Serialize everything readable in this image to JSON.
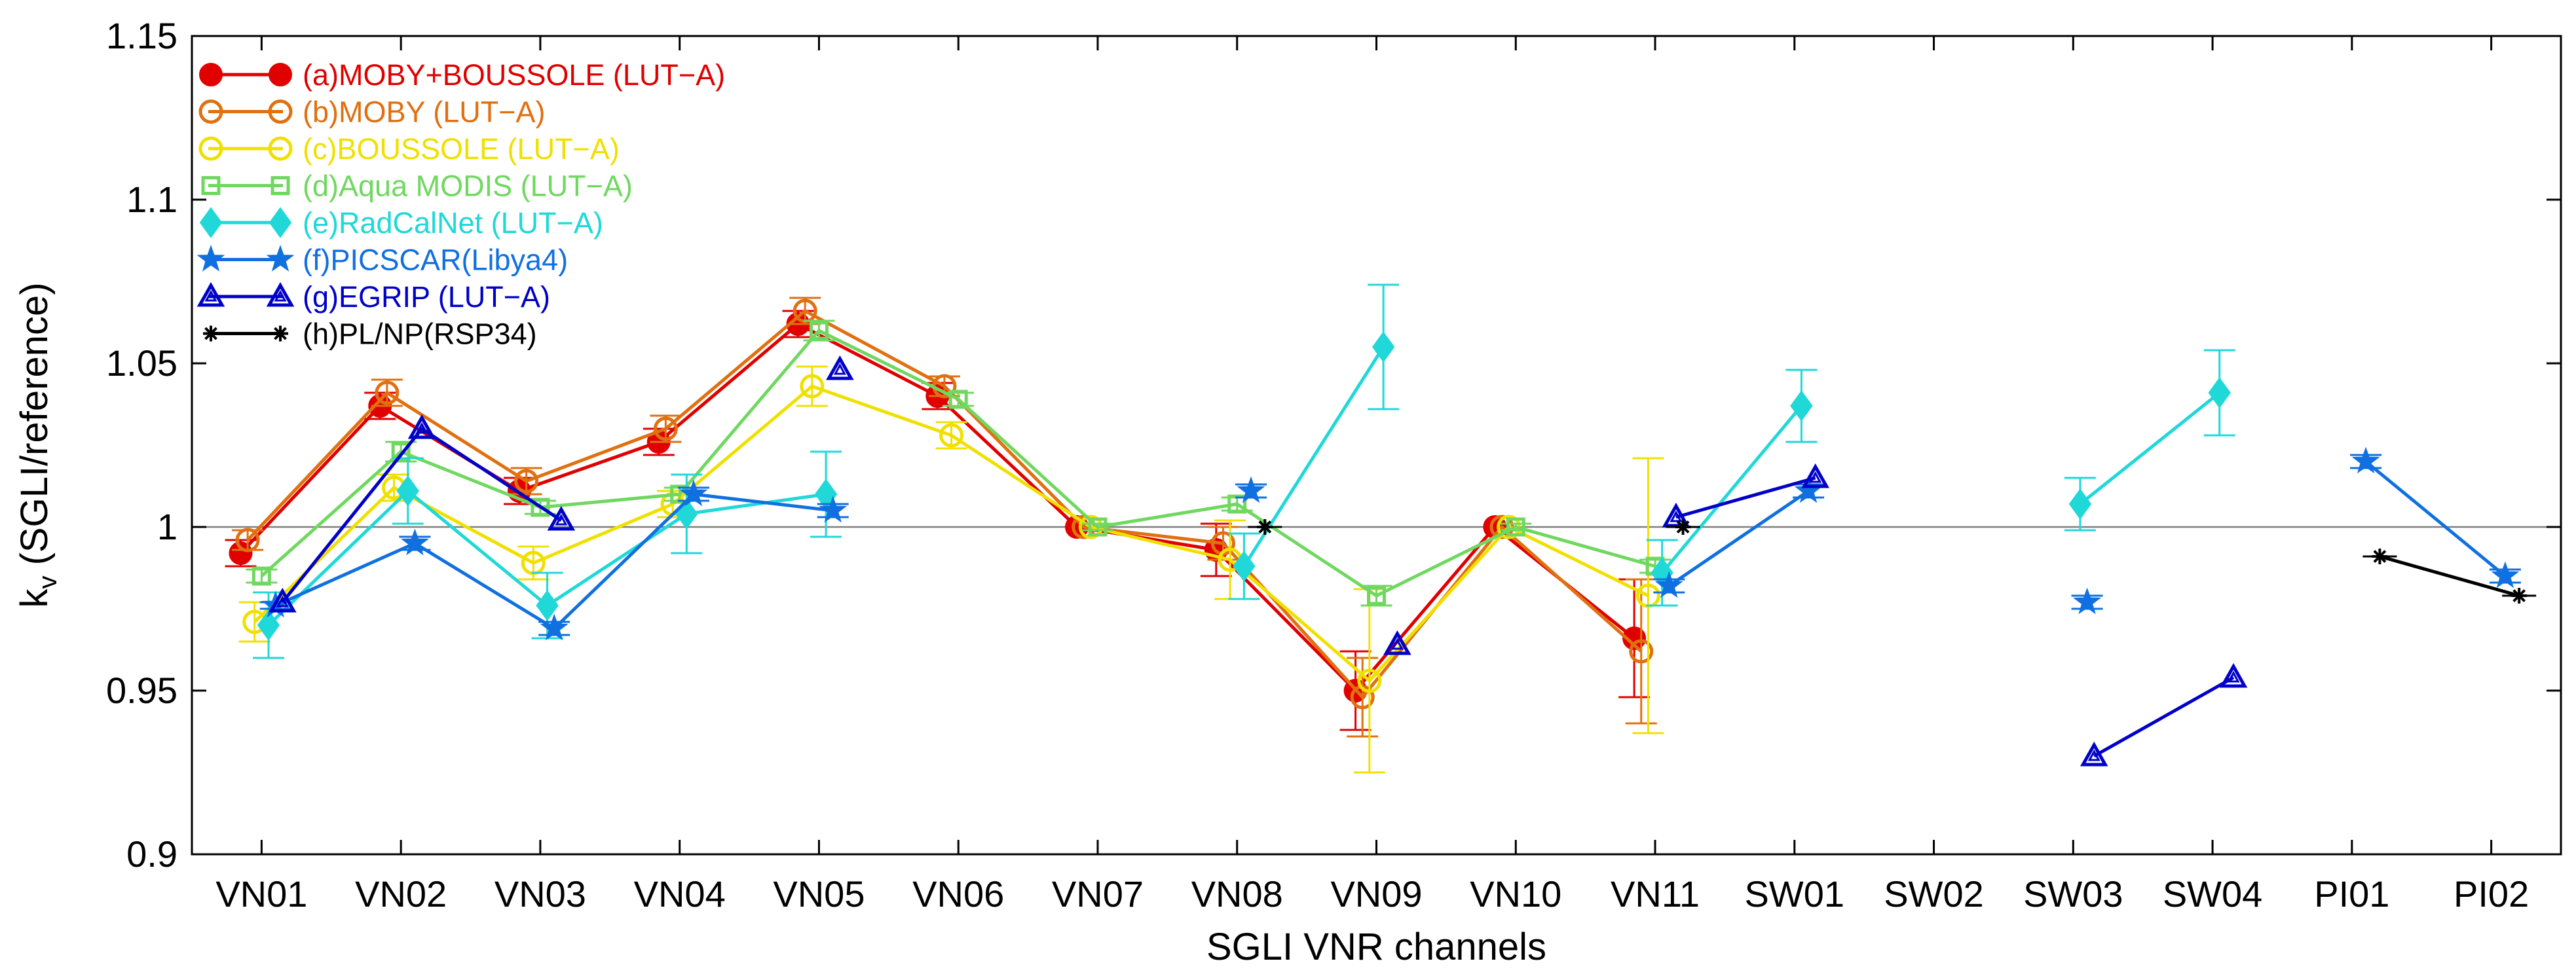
{
  "chart_data": {
    "type": "line",
    "xlabel": "SGLI VNR channels",
    "ylabel_main": "k",
    "ylabel_sub": "v",
    "ylabel_rest": " (SGLI/reference)",
    "ylim": [
      0.9,
      1.15
    ],
    "yticks": [
      "0.9",
      "0.95",
      "1",
      "1.05",
      "1.1",
      "1.15"
    ],
    "ytick_values": [
      0.9,
      0.95,
      1.0,
      1.05,
      1.1,
      1.15
    ],
    "reference_line": 1.0,
    "legend_position": "top-left",
    "categories": [
      "VN01",
      "VN02",
      "VN03",
      "VN04",
      "VN05",
      "VN06",
      "VN07",
      "VN08",
      "VN09",
      "VN10",
      "VN11",
      "SW01",
      "SW02",
      "SW03",
      "SW04",
      "PI01",
      "PI02"
    ],
    "series": [
      {
        "name": "(a)MOBY+BOUSSOLE (LUT−A)",
        "color": "#e00000",
        "marker": "circle-filled",
        "offset": -0.15,
        "values": [
          0.992,
          1.037,
          1.011,
          1.026,
          1.062,
          1.04,
          1.0,
          0.993,
          0.95,
          1.0,
          0.966,
          null,
          null,
          null,
          null,
          null,
          null
        ],
        "errors": [
          0.004,
          0.004,
          0.004,
          0.004,
          0.004,
          0.004,
          0.0,
          0.008,
          0.012,
          0.0,
          0.018,
          null,
          null,
          null,
          null,
          null,
          null
        ]
      },
      {
        "name": "(b)MOBY (LUT−A)",
        "color": "#e07010",
        "marker": "circle-open",
        "offset": -0.1,
        "values": [
          0.996,
          1.041,
          1.014,
          1.03,
          1.066,
          1.043,
          1.0,
          0.995,
          0.948,
          1.0,
          0.962,
          null,
          null,
          null,
          null,
          null,
          null
        ],
        "errors": [
          0.003,
          0.004,
          0.004,
          0.004,
          0.004,
          0.003,
          0.0,
          0.005,
          0.012,
          0.0,
          0.022,
          null,
          null,
          null,
          null,
          null,
          null
        ]
      },
      {
        "name": "(c)BOUSSOLE (LUT−A)",
        "color": "#f0e000",
        "marker": "circle-open",
        "offset": -0.05,
        "values": [
          0.971,
          1.012,
          0.989,
          1.007,
          1.043,
          1.028,
          1.0,
          0.99,
          0.953,
          1.0,
          0.979,
          null,
          null,
          null,
          null,
          null,
          null
        ],
        "errors": [
          0.006,
          0.004,
          0.005,
          0.004,
          0.006,
          0.004,
          0.0,
          0.012,
          0.028,
          0.0,
          0.042,
          null,
          null,
          null,
          null,
          null,
          null
        ]
      },
      {
        "name": "(d)Aqua MODIS (LUT−A)",
        "color": "#70d860",
        "marker": "square-open",
        "offset": 0.0,
        "values": [
          0.985,
          1.023,
          1.006,
          1.01,
          1.06,
          1.039,
          1.0,
          1.007,
          0.979,
          1.0,
          0.988,
          null,
          null,
          null,
          null,
          null,
          null
        ],
        "errors": [
          0.002,
          0.003,
          0.002,
          0.002,
          0.003,
          0.002,
          0.001,
          0.002,
          0.003,
          0.001,
          0.002,
          null,
          null,
          null,
          null,
          null,
          null
        ]
      },
      {
        "name": "(e)RadCalNet (LUT−A)",
        "color": "#20d8d8",
        "marker": "diamond-filled",
        "offset": 0.05,
        "values": [
          0.97,
          1.011,
          0.976,
          1.004,
          1.01,
          null,
          null,
          0.988,
          1.055,
          null,
          0.986,
          1.037,
          null,
          1.007,
          1.041,
          null,
          null
        ],
        "errors": [
          0.01,
          0.01,
          0.01,
          0.012,
          0.013,
          null,
          null,
          0.01,
          0.019,
          null,
          0.01,
          0.011,
          null,
          0.008,
          0.013,
          null,
          null
        ]
      },
      {
        "name": "(f)PICSCAR(Libya4)",
        "color": "#1070e0",
        "marker": "star",
        "offset": 0.1,
        "values": [
          0.976,
          0.995,
          0.969,
          1.01,
          1.005,
          null,
          null,
          1.011,
          null,
          null,
          0.982,
          1.011,
          null,
          0.977,
          null,
          1.02,
          0.985
        ],
        "errors": [
          0.001,
          0.002,
          0.002,
          0.002,
          0.002,
          null,
          null,
          0.002,
          null,
          null,
          0.002,
          0.002,
          null,
          0.002,
          null,
          0.002,
          0.002
        ]
      },
      {
        "name": "(g)EGRIP (LUT−A)",
        "color": "#0000c8",
        "marker": "triangle-open",
        "offset": 0.15,
        "values": [
          0.977,
          1.03,
          1.002,
          null,
          1.048,
          null,
          null,
          null,
          0.964,
          null,
          1.003,
          1.015,
          null,
          0.93,
          0.954,
          null,
          null
        ],
        "errors": [
          0,
          0,
          0,
          null,
          0,
          null,
          null,
          null,
          0,
          null,
          0,
          0,
          null,
          0,
          0,
          null,
          null
        ],
        "segments": [
          [
            0,
            1,
            2
          ],
          [
            4
          ],
          [
            8
          ],
          [
            10,
            11
          ],
          [
            13,
            14
          ]
        ]
      },
      {
        "name": "(h)PL/NP(RSP34)",
        "color": "#000000",
        "marker": "asterisk",
        "offset": 0.2,
        "values": [
          null,
          null,
          null,
          null,
          null,
          null,
          null,
          1.0,
          null,
          null,
          1.0,
          null,
          null,
          null,
          null,
          0.991,
          0.979
        ],
        "errors": [
          null,
          null,
          null,
          null,
          null,
          null,
          null,
          0,
          null,
          null,
          0,
          null,
          null,
          null,
          null,
          0,
          0
        ],
        "segments": [
          [
            7
          ],
          [
            10
          ],
          [
            15,
            16
          ]
        ]
      }
    ]
  }
}
